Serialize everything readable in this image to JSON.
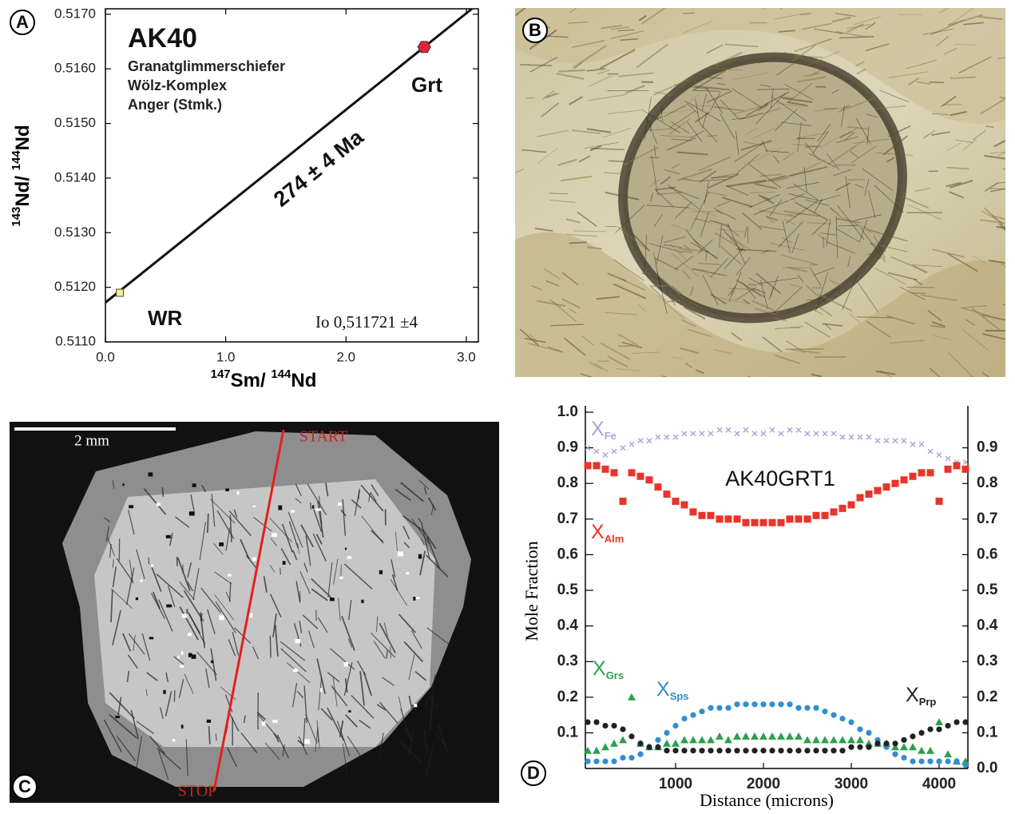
{
  "chart_data": [
    {
      "type": "scatter",
      "panel": "A",
      "title": "AK40",
      "subtitle": [
        "Granatglimmerschiefer",
        "Wölz-Komplex",
        "Anger (Stmk.)"
      ],
      "annotation": "274 ± 4 Ma",
      "intercept": 0.511721,
      "intercept_label": "Io 0,511721 ±4",
      "x_label": [
        "147",
        "Sm/ ",
        "144",
        "Nd"
      ],
      "y_label": [
        "143",
        "Nd/ ",
        "144",
        "Nd"
      ],
      "xlim": [
        0,
        3.1
      ],
      "xticks": [
        {
          "value": 0,
          "label": "0.0"
        },
        {
          "value": 1,
          "label": "1.0"
        },
        {
          "value": 2,
          "label": "2.0"
        },
        {
          "value": 3,
          "label": "3.0"
        }
      ],
      "ylim": [
        0.511,
        0.5171
      ],
      "yticks": [
        {
          "value": 0.511,
          "label": "0.5110"
        },
        {
          "value": 0.512,
          "label": "0.5120"
        },
        {
          "value": 0.513,
          "label": "0.5130"
        },
        {
          "value": 0.514,
          "label": "0.5140"
        },
        {
          "value": 0.515,
          "label": "0.5150"
        },
        {
          "value": 0.516,
          "label": "0.5160"
        },
        {
          "value": 0.517,
          "label": "0.5170"
        }
      ],
      "series": [
        {
          "name": "WR",
          "x": [
            0.12
          ],
          "values": [
            0.5119
          ],
          "color": "#f3ef8c",
          "marker": "square"
        },
        {
          "name": "Grt",
          "x": [
            2.65
          ],
          "values": [
            0.5164
          ],
          "color": "#e3243b",
          "marker": "hexagon"
        }
      ]
    },
    {
      "type": "scatter",
      "panel": "D",
      "title": "AK40GRT1",
      "x_label": "Distance (microns)",
      "y_label": "Mole Fraction",
      "xlim": [
        0,
        4300
      ],
      "xticks": [
        1000,
        2000,
        3000,
        4000
      ],
      "ylim": [
        0,
        1
      ],
      "yticks": [
        0.1,
        0.2,
        0.3,
        0.4,
        0.5,
        0.6,
        0.7,
        0.8,
        0.9,
        {
          "value": 1,
          "label": "1.0"
        }
      ],
      "y2lim": [
        0,
        1
      ],
      "y2ticks": [
        {
          "value": 0,
          "label": "0.0"
        },
        0.1,
        0.2,
        0.3,
        0.4,
        0.5,
        0.6,
        0.7,
        0.8,
        0.9
      ],
      "x": [
        0,
        100,
        200,
        300,
        400,
        500,
        600,
        700,
        800,
        900,
        1000,
        1100,
        1200,
        1300,
        1400,
        1500,
        1600,
        1700,
        1800,
        1900,
        2000,
        2100,
        2200,
        2300,
        2400,
        2500,
        2600,
        2700,
        2800,
        2900,
        3000,
        3100,
        3200,
        3300,
        3400,
        3500,
        3600,
        3700,
        3800,
        3900,
        4000,
        4100,
        4200,
        4300
      ],
      "series": [
        {
          "symbol": "X",
          "name": "Fe",
          "color": "#a9a3d6",
          "marker": "cross",
          "values": [
            0.9,
            0.89,
            0.88,
            0.89,
            0.9,
            0.91,
            0.92,
            0.92,
            0.93,
            0.93,
            0.93,
            0.94,
            0.94,
            0.94,
            0.94,
            0.95,
            0.95,
            0.94,
            0.95,
            0.94,
            0.94,
            0.95,
            0.94,
            0.95,
            0.95,
            0.94,
            0.94,
            0.94,
            0.94,
            0.93,
            0.93,
            0.93,
            0.93,
            0.92,
            0.92,
            0.92,
            0.92,
            0.91,
            0.91,
            0.89,
            0.88,
            0.87,
            0.86,
            0.86
          ]
        },
        {
          "symbol": "X",
          "name": "Alm",
          "color": "#e8352b",
          "marker": "square",
          "values": [
            0.85,
            0.85,
            0.84,
            0.83,
            0.75,
            0.83,
            0.82,
            0.81,
            0.79,
            0.77,
            0.75,
            0.74,
            0.72,
            0.71,
            0.71,
            0.7,
            0.7,
            0.7,
            0.69,
            0.69,
            0.69,
            0.69,
            0.69,
            0.7,
            0.7,
            0.7,
            0.71,
            0.71,
            0.72,
            0.73,
            0.74,
            0.76,
            0.77,
            0.78,
            0.79,
            0.8,
            0.81,
            0.82,
            0.83,
            0.83,
            0.75,
            0.84,
            0.85,
            0.84
          ]
        },
        {
          "symbol": "X",
          "name": "Grs",
          "color": "#2ca04c",
          "marker": "triangle",
          "values": [
            0.05,
            0.05,
            0.06,
            0.07,
            0.08,
            0.2,
            0.07,
            0.06,
            0.06,
            0.07,
            0.07,
            0.08,
            0.08,
            0.08,
            0.08,
            0.09,
            0.08,
            0.09,
            0.09,
            0.09,
            0.09,
            0.09,
            0.09,
            0.09,
            0.09,
            0.08,
            0.08,
            0.08,
            0.08,
            0.08,
            0.08,
            0.08,
            0.07,
            0.07,
            0.07,
            0.06,
            0.06,
            0.06,
            0.05,
            0.05,
            0.13,
            0.04,
            0.02,
            0.02
          ]
        },
        {
          "symbol": "X",
          "name": "Sps",
          "color": "#2f8fd0",
          "marker": "circle",
          "values": [
            0.02,
            0.02,
            0.02,
            0.02,
            0.03,
            0.03,
            0.04,
            0.06,
            0.08,
            0.1,
            0.12,
            0.14,
            0.15,
            0.16,
            0.17,
            0.17,
            0.17,
            0.18,
            0.18,
            0.18,
            0.18,
            0.18,
            0.18,
            0.18,
            0.17,
            0.17,
            0.17,
            0.16,
            0.15,
            0.14,
            0.13,
            0.11,
            0.1,
            0.08,
            0.06,
            0.04,
            0.03,
            0.02,
            0.02,
            0.02,
            0.02,
            0.02,
            0.02,
            0.01
          ]
        },
        {
          "symbol": "X",
          "name": "Prp",
          "color": "#222222",
          "marker": "circle",
          "values": [
            0.13,
            0.13,
            0.12,
            0.12,
            0.11,
            0.09,
            0.07,
            0.06,
            0.06,
            0.05,
            0.05,
            0.05,
            0.05,
            0.05,
            0.05,
            0.05,
            0.05,
            0.05,
            0.05,
            0.05,
            0.05,
            0.05,
            0.05,
            0.05,
            0.05,
            0.05,
            0.05,
            0.05,
            0.05,
            0.05,
            0.06,
            0.06,
            0.06,
            0.07,
            0.07,
            0.07,
            0.08,
            0.09,
            0.1,
            0.11,
            0.11,
            0.12,
            0.13,
            0.13
          ]
        }
      ]
    }
  ],
  "images": {
    "B": {
      "label": "B"
    },
    "C": {
      "label": "C",
      "scale_bar": "2 mm",
      "start": "START",
      "stop": "STOP"
    }
  }
}
